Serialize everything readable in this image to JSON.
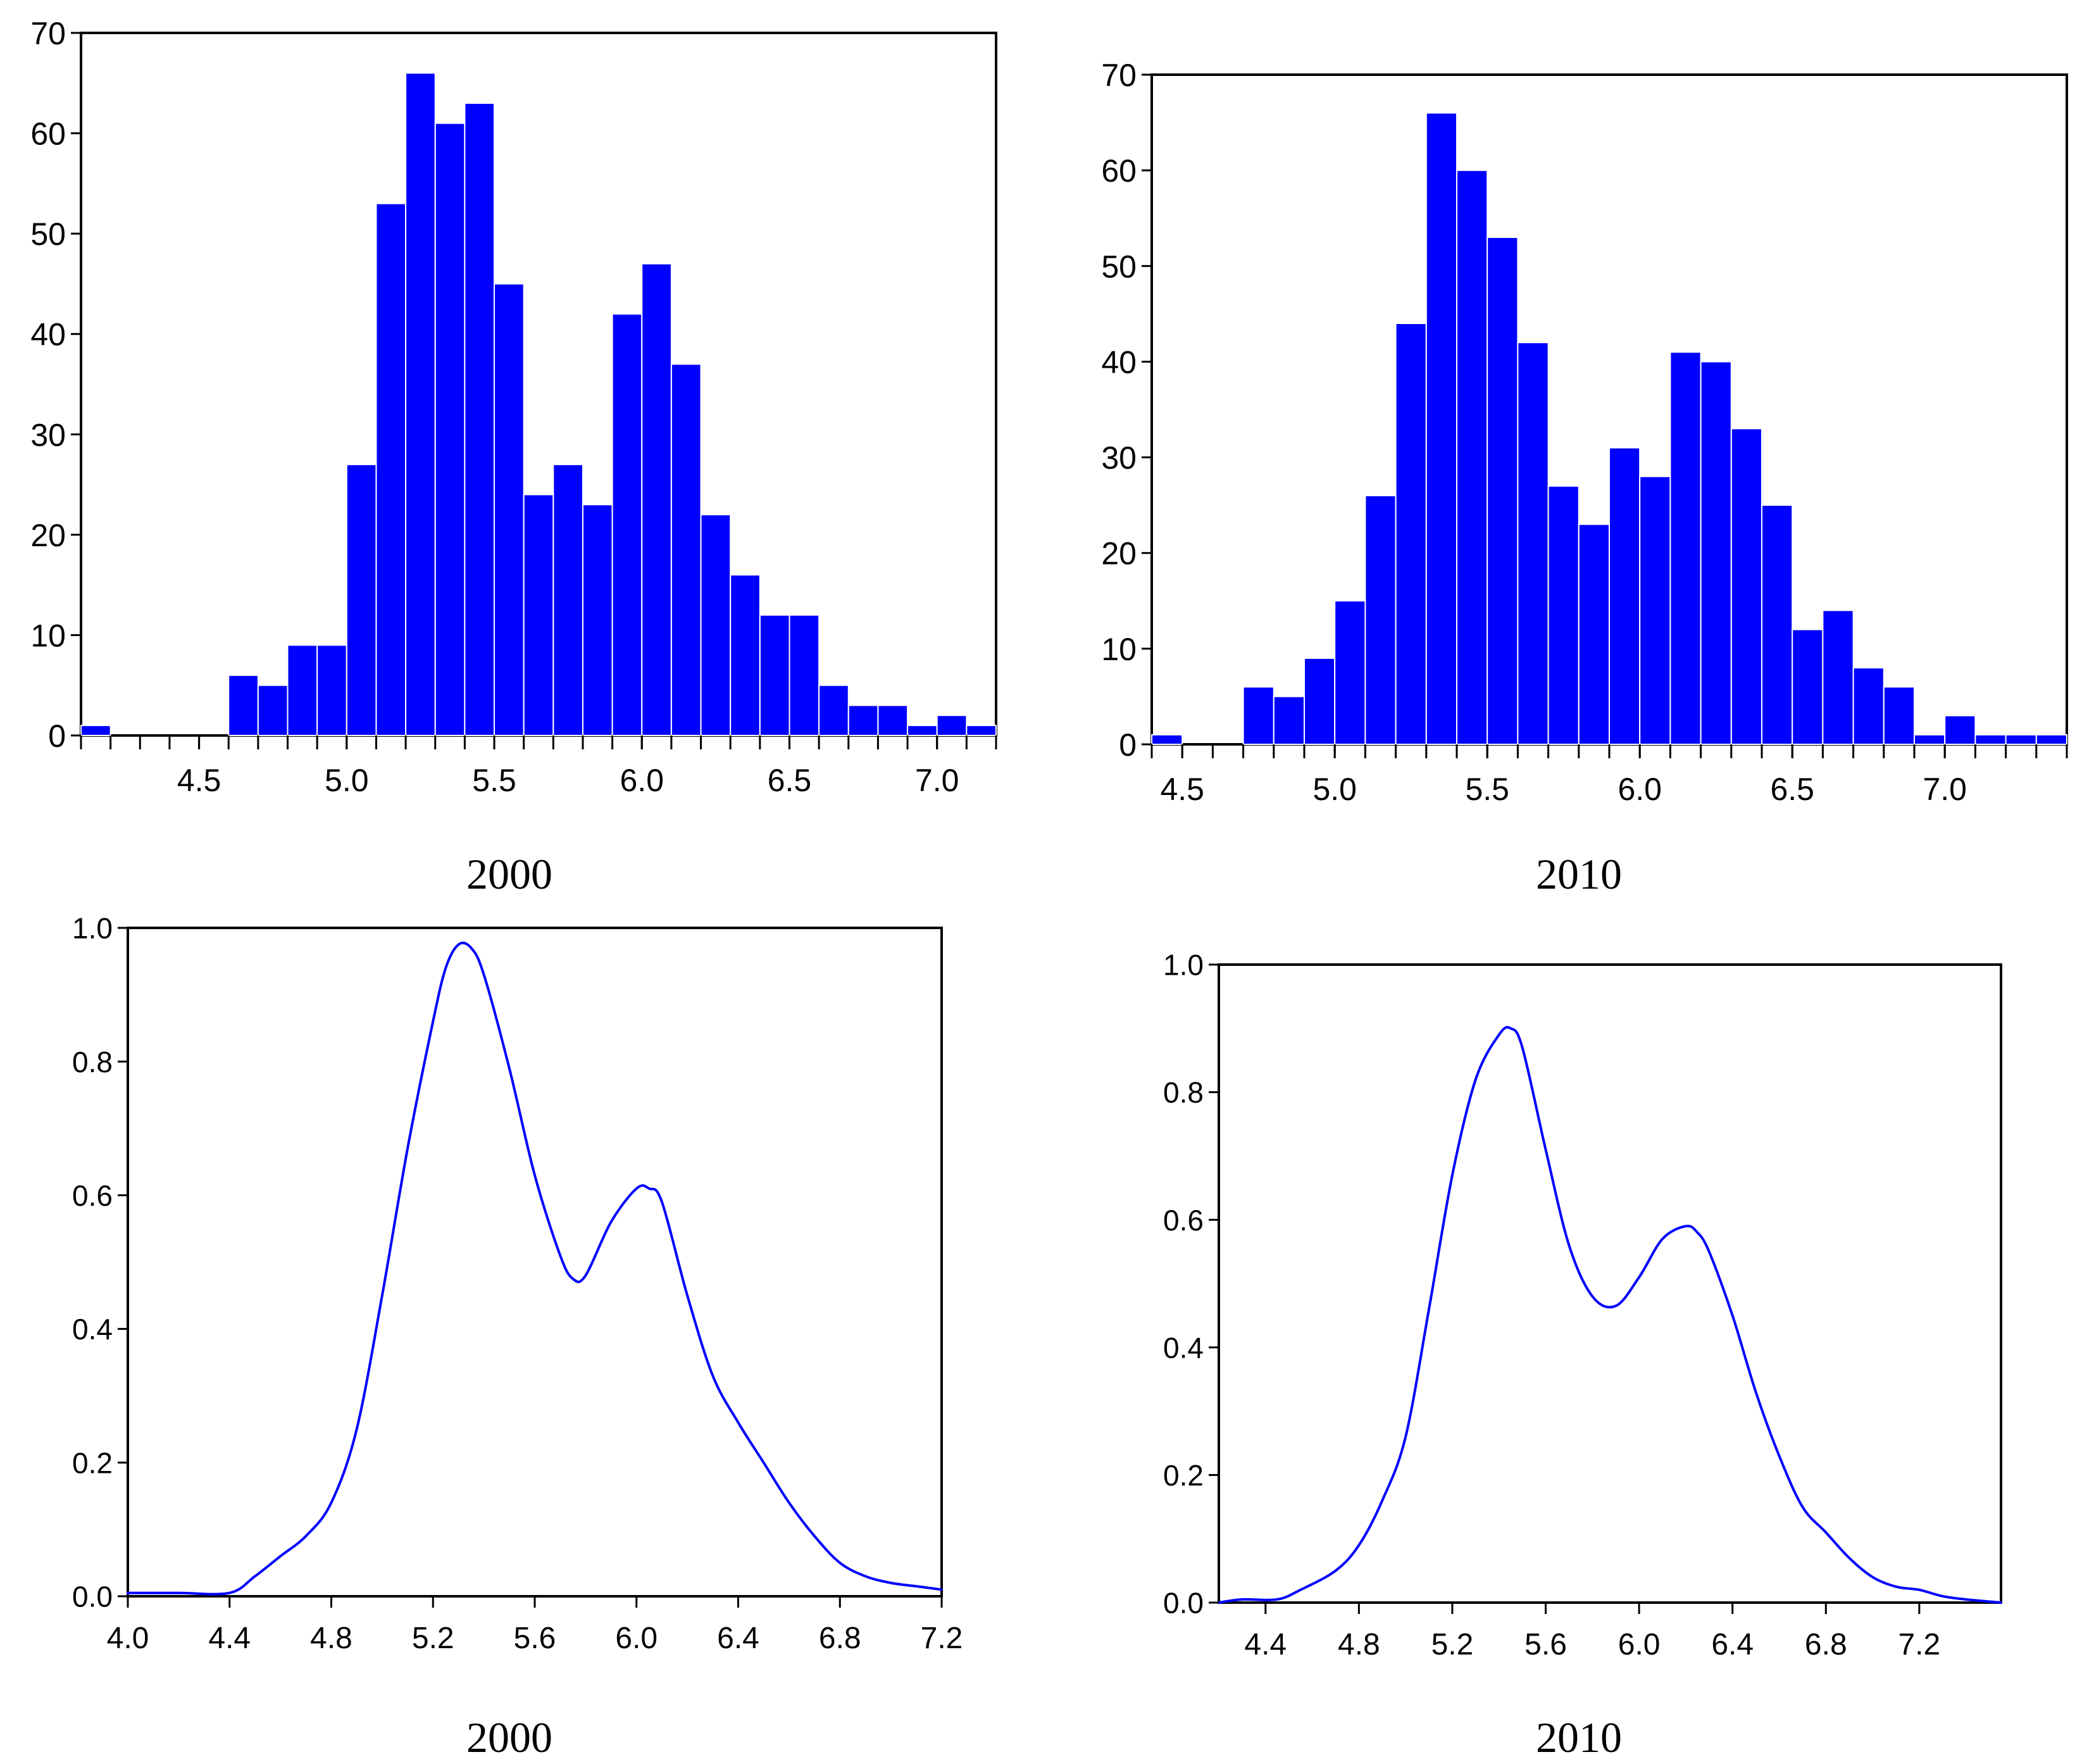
{
  "chart_data": [
    {
      "id": "hist-2000",
      "type": "bar",
      "caption": "2000",
      "bin_start": 4.1,
      "bin_width": 0.1,
      "values": [
        1,
        0,
        0,
        0,
        0,
        6,
        5,
        9,
        9,
        27,
        53,
        66,
        61,
        63,
        45,
        24,
        27,
        23,
        42,
        47,
        37,
        22,
        16,
        12,
        12,
        5,
        3,
        3,
        1,
        2,
        1
      ],
      "xlim": [
        4.1,
        7.2
      ],
      "ylim": [
        0,
        70
      ],
      "x_ticks": [
        "4.5",
        "5.0",
        "5.5",
        "6.0",
        "6.5",
        "7.0"
      ],
      "y_ticks": [
        "0",
        "10",
        "20",
        "30",
        "40",
        "50",
        "60",
        "70"
      ],
      "bar_color": "#0000ff"
    },
    {
      "id": "hist-2010",
      "type": "bar",
      "caption": "2010",
      "bin_start": 4.4,
      "bin_width": 0.1,
      "values": [
        1,
        0,
        0,
        6,
        5,
        9,
        15,
        26,
        44,
        66,
        60,
        53,
        42,
        27,
        23,
        31,
        28,
        41,
        40,
        33,
        25,
        12,
        14,
        8,
        6,
        1,
        3,
        1,
        1,
        1
      ],
      "xlim": [
        4.4,
        7.4
      ],
      "ylim": [
        0,
        70
      ],
      "x_ticks": [
        "4.5",
        "5.0",
        "5.5",
        "6.0",
        "6.5",
        "7.0"
      ],
      "y_ticks": [
        "0",
        "10",
        "20",
        "30",
        "40",
        "50",
        "60",
        "70"
      ],
      "bar_color": "#0000ff"
    },
    {
      "id": "density-2000",
      "type": "line",
      "caption": "2000",
      "x": [
        4.0,
        4.2,
        4.4,
        4.5,
        4.6,
        4.7,
        4.8,
        4.9,
        5.0,
        5.1,
        5.2,
        5.25,
        5.3,
        5.35,
        5.4,
        5.5,
        5.6,
        5.7,
        5.75,
        5.8,
        5.9,
        6.0,
        6.05,
        6.1,
        6.2,
        6.3,
        6.4,
        6.5,
        6.6,
        6.7,
        6.8,
        6.9,
        7.0,
        7.1,
        7.2
      ],
      "y": [
        0.005,
        0.005,
        0.005,
        0.03,
        0.06,
        0.09,
        0.14,
        0.25,
        0.45,
        0.67,
        0.86,
        0.94,
        0.975,
        0.97,
        0.93,
        0.79,
        0.63,
        0.51,
        0.475,
        0.48,
        0.56,
        0.61,
        0.61,
        0.59,
        0.45,
        0.33,
        0.26,
        0.2,
        0.14,
        0.09,
        0.05,
        0.03,
        0.02,
        0.015,
        0.01
      ],
      "xlim": [
        4.0,
        7.2
      ],
      "ylim": [
        0,
        1.0
      ],
      "x_ticks": [
        "4.0",
        "4.4",
        "4.8",
        "5.2",
        "5.6",
        "6.0",
        "6.4",
        "6.8",
        "7.2"
      ],
      "y_ticks": [
        "0.0",
        "0.2",
        "0.4",
        "0.6",
        "0.8",
        "1.0"
      ],
      "line_color": "#0000ff"
    },
    {
      "id": "density-2010",
      "type": "line",
      "caption": "2010",
      "x": [
        4.2,
        4.3,
        4.45,
        4.55,
        4.7,
        4.8,
        4.9,
        5.0,
        5.1,
        5.2,
        5.3,
        5.4,
        5.45,
        5.5,
        5.6,
        5.7,
        5.8,
        5.9,
        6.0,
        6.1,
        6.2,
        6.25,
        6.3,
        6.4,
        6.5,
        6.6,
        6.7,
        6.8,
        6.9,
        7.0,
        7.1,
        7.2,
        7.3,
        7.4,
        7.55
      ],
      "y": [
        0.0,
        0.005,
        0.005,
        0.02,
        0.05,
        0.09,
        0.16,
        0.26,
        0.46,
        0.67,
        0.82,
        0.89,
        0.9,
        0.87,
        0.71,
        0.56,
        0.48,
        0.465,
        0.51,
        0.57,
        0.59,
        0.58,
        0.55,
        0.45,
        0.33,
        0.23,
        0.15,
        0.11,
        0.07,
        0.04,
        0.025,
        0.02,
        0.01,
        0.005,
        0.0
      ],
      "xlim": [
        4.2,
        7.55
      ],
      "ylim": [
        0,
        1.0
      ],
      "x_ticks": [
        "4.4",
        "4.8",
        "5.2",
        "5.6",
        "6.0",
        "6.4",
        "6.8",
        "7.2"
      ],
      "y_ticks": [
        "0.0",
        "0.2",
        "0.4",
        "0.6",
        "0.8",
        "1.0"
      ],
      "line_color": "#0000ff"
    }
  ]
}
